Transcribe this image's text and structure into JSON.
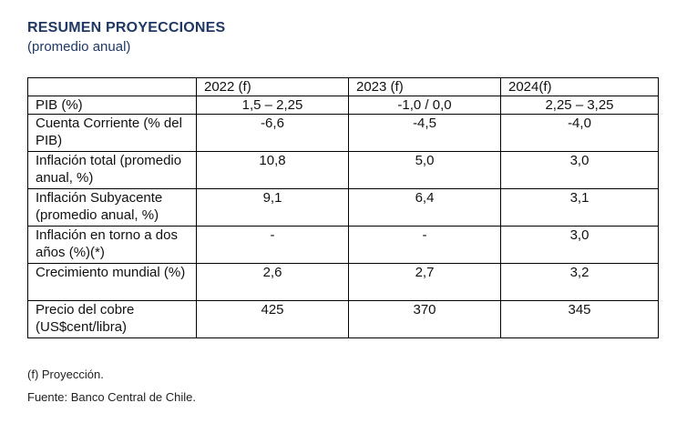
{
  "header": {
    "title": "RESUMEN PROYECCIONES",
    "subtitle": "(promedio anual)"
  },
  "table": {
    "columns": [
      "",
      "2022 (f)",
      "2023 (f)",
      "2024(f)"
    ],
    "rows": [
      {
        "label": "PIB (%)",
        "values": [
          "1,5 – 2,25",
          "-1,0 / 0,0",
          "2,25 – 3,25"
        ]
      },
      {
        "label": "Cuenta Corriente (% del PIB)",
        "values": [
          "-6,6",
          "-4,5",
          "-4,0"
        ]
      },
      {
        "label": "Inflación total (promedio anual, %)",
        "values": [
          "10,8",
          "5,0",
          "3,0"
        ]
      },
      {
        "label": "Inflación Subyacente (promedio anual, %)",
        "values": [
          "9,1",
          "6,4",
          "3,1"
        ]
      },
      {
        "label": "Inflación en torno a dos años (%)(*)",
        "values": [
          "-",
          "-",
          "3,0"
        ]
      },
      {
        "label": "Crecimiento mundial (%)",
        "values": [
          "2,6",
          "2,7",
          "3,2"
        ]
      },
      {
        "label": "Precio del cobre (US$cent/libra)",
        "values": [
          "425",
          "370",
          "345"
        ]
      }
    ]
  },
  "notes": {
    "projection": "(f) Proyección.",
    "source": "Fuente: Banco Central de Chile."
  }
}
